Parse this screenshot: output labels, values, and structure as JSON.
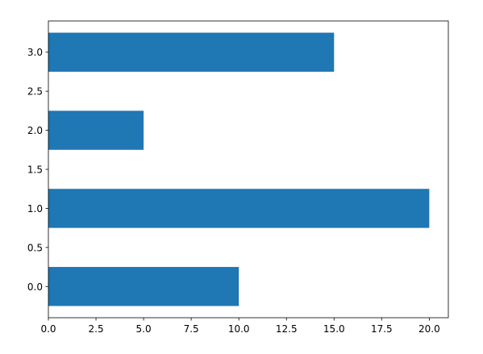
{
  "chart_data": {
    "type": "bar",
    "orientation": "horizontal",
    "title": "",
    "xlabel": "",
    "ylabel": "",
    "grid": false,
    "legend": "none",
    "bar_color": "#1f77b4",
    "xlim": [
      0,
      21
    ],
    "ylim": [
      -0.4,
      3.4
    ],
    "bar_height": 0.5,
    "bars": [
      {
        "y": 0.0,
        "value": 10
      },
      {
        "y": 1.0,
        "value": 20
      },
      {
        "y": 2.0,
        "value": 5
      },
      {
        "y": 3.0,
        "value": 15
      }
    ],
    "x_ticks": [
      {
        "value": 0.0,
        "label": "0.0"
      },
      {
        "value": 2.5,
        "label": "2.5"
      },
      {
        "value": 5.0,
        "label": "5.0"
      },
      {
        "value": 7.5,
        "label": "7.5"
      },
      {
        "value": 10.0,
        "label": "10.0"
      },
      {
        "value": 12.5,
        "label": "12.5"
      },
      {
        "value": 15.0,
        "label": "15.0"
      },
      {
        "value": 17.5,
        "label": "17.5"
      },
      {
        "value": 20.0,
        "label": "20.0"
      }
    ],
    "y_ticks": [
      {
        "value": 0.0,
        "label": "0.0"
      },
      {
        "value": 0.5,
        "label": "0.5"
      },
      {
        "value": 1.0,
        "label": "1.0"
      },
      {
        "value": 1.5,
        "label": "1.5"
      },
      {
        "value": 2.0,
        "label": "2.0"
      },
      {
        "value": 2.5,
        "label": "2.5"
      },
      {
        "value": 3.0,
        "label": "3.0"
      }
    ]
  }
}
